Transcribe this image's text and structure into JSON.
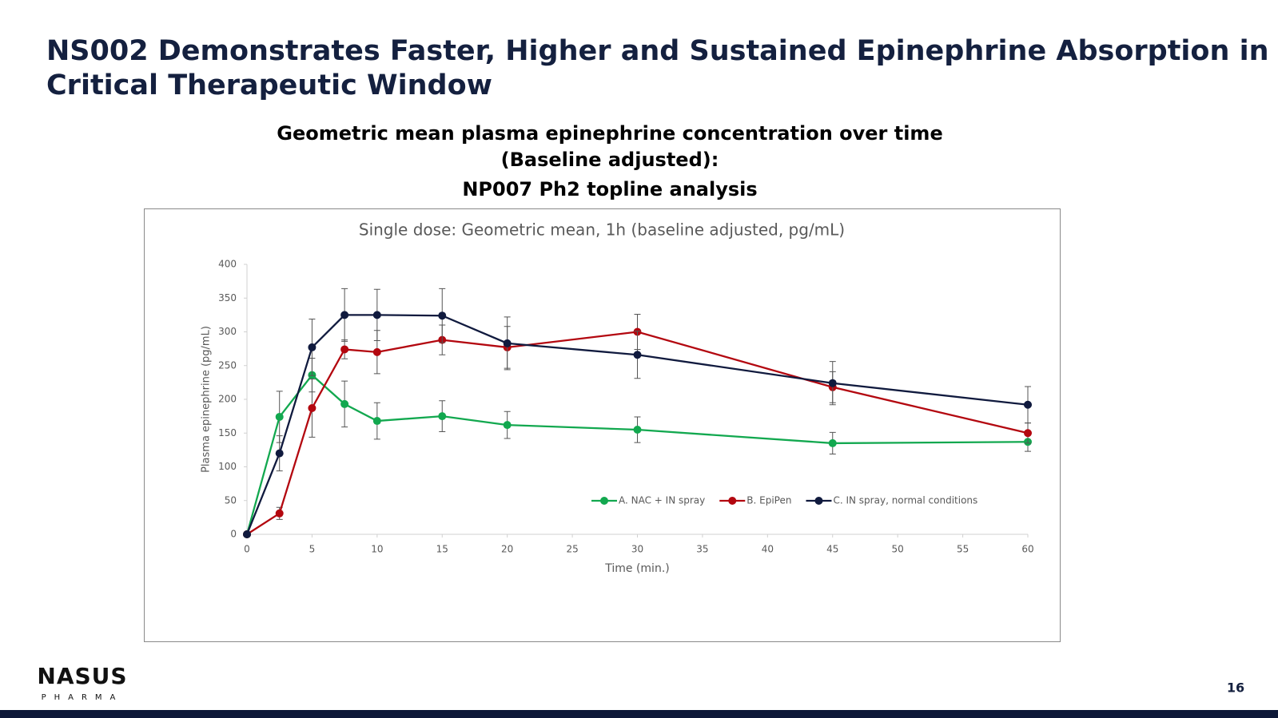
{
  "slide": {
    "title_lines": [
      "NS002 Demonstrates Faster, Higher and Sustained Epinephrine Absorption in",
      "Critical Therapeutic Window"
    ],
    "heading_lines": [
      "Geometric mean plasma epinephrine concentration over time",
      "(Baseline adjusted):",
      "NP007 Ph2 topline analysis"
    ],
    "logo": {
      "name": "NASUS",
      "tagline": "PHARMA"
    },
    "page_number": "16"
  },
  "chart_data": {
    "type": "line",
    "title": "Single dose: Geometric mean, 1h (baseline adjusted, pg/mL)",
    "x_label": "Time (min.)",
    "y_label": "Plasma epinephrine (pg/mL)",
    "x": [
      0,
      2.5,
      5,
      7.5,
      10,
      15,
      20,
      30,
      45,
      60
    ],
    "xlim": [
      0,
      60
    ],
    "xticks": [
      0,
      5,
      10,
      15,
      20,
      25,
      30,
      35,
      40,
      45,
      50,
      55,
      60
    ],
    "ylim": [
      0,
      400
    ],
    "yticks": [
      0,
      50,
      100,
      150,
      200,
      250,
      300,
      350,
      400
    ],
    "grid": false,
    "legend": "lower right",
    "series": [
      {
        "name": "A. NAC + IN spray",
        "color": "#12a84f",
        "values": [
          0,
          174,
          236,
          193,
          168,
          175,
          162,
          155,
          135,
          137
        ],
        "errors": [
          null,
          38,
          25,
          34,
          27,
          23,
          20,
          19,
          16,
          14
        ]
      },
      {
        "name": "B. EpiPen",
        "color": "#b3070f",
        "values": [
          0,
          31,
          187,
          274,
          270,
          288,
          277,
          300,
          218,
          150
        ],
        "errors": [
          null,
          9,
          43,
          14,
          32,
          22,
          31,
          26,
          23,
          15
        ]
      },
      {
        "name": "C. IN spray, normal conditions",
        "color": "#101a3e",
        "values": [
          0,
          120,
          277,
          325,
          325,
          324,
          283,
          266,
          224,
          192
        ],
        "errors": [
          null,
          26,
          42,
          39,
          38,
          40,
          39,
          35,
          32,
          27
        ]
      }
    ]
  }
}
